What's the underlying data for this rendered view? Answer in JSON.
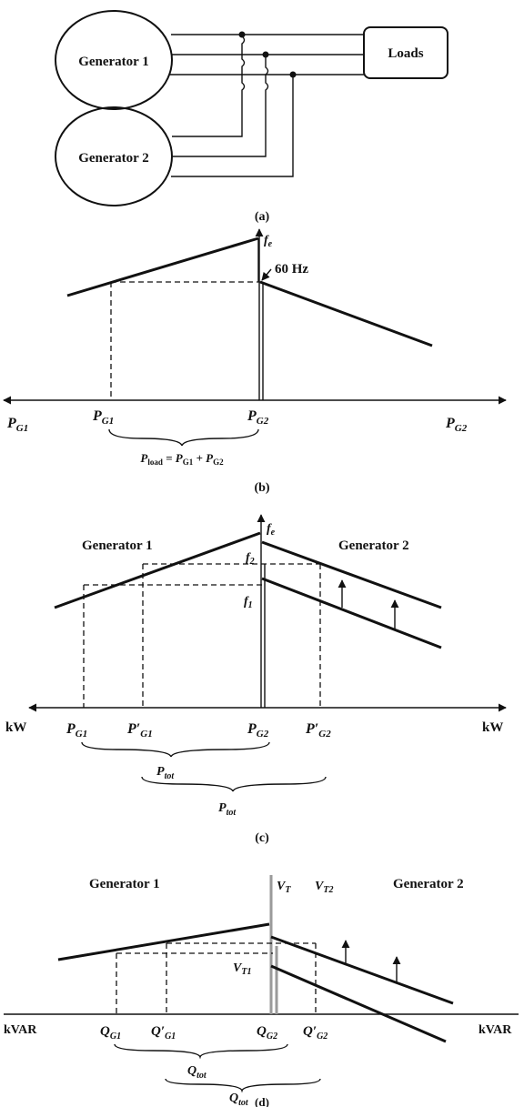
{
  "panel_a": {
    "generator1": "Generator 1",
    "generator2": "Generator 2",
    "loads": "Loads",
    "caption": "(a)"
  },
  "panel_b": {
    "freq_axis": "f",
    "freq_axis_sub": "e",
    "freq_value": "60 Hz",
    "left_axis": "P",
    "left_axis_sub": "G1",
    "right_axis": "P",
    "right_axis_sub": "G2",
    "tick_pg1": "P",
    "tick_pg1_sub": "G1",
    "tick_pg2": "P",
    "tick_pg2_sub": "G2",
    "load_eq_p": "P",
    "load_eq_sub": "load",
    "load_eq_rest": " = P",
    "load_eq_sub1": "G1",
    "load_eq_plus": " + P",
    "load_eq_sub2": "G2",
    "caption": "(b)"
  },
  "panel_c": {
    "gen1_label": "Generator 1",
    "gen2_label": "Generator 2",
    "freq_axis": "f",
    "freq_axis_sub": "e",
    "f2": "f",
    "f2_sub": "2",
    "f1": "f",
    "f1_sub": "1",
    "left_unit": "kW",
    "right_unit": "kW",
    "tick_pg1": "P",
    "tick_pg1_sub": "G1",
    "tick_pg1p": "P′",
    "tick_pg1p_sub": "G1",
    "tick_pg2": "P",
    "tick_pg2_sub": "G2",
    "tick_pg2p": "P′",
    "tick_pg2p_sub": "G2",
    "ptot1": "P",
    "ptot1_sub": "tot",
    "ptot2": "P",
    "ptot2_sub": "tot",
    "caption": "(c)"
  },
  "panel_d": {
    "gen1_label": "Generator 1",
    "gen2_label": "Generator 2",
    "vt": "V",
    "vt_sub": "T",
    "vt2": "V",
    "vt2_sub": "T2",
    "vt1": "V",
    "vt1_sub": "T1",
    "left_unit": "kVAR",
    "right_unit": "kVAR",
    "tick_qg1": "Q",
    "tick_qg1_sub": "G1",
    "tick_qg1p": "Q′",
    "tick_qg1p_sub": "G1",
    "tick_qg2": "Q",
    "tick_qg2_sub": "G2",
    "tick_qg2p": "Q′",
    "tick_qg2p_sub": "G2",
    "qtot1": "Q",
    "qtot1_sub": "tot",
    "qtot2": "Q",
    "qtot2_sub": "tot",
    "caption": "(d)"
  }
}
